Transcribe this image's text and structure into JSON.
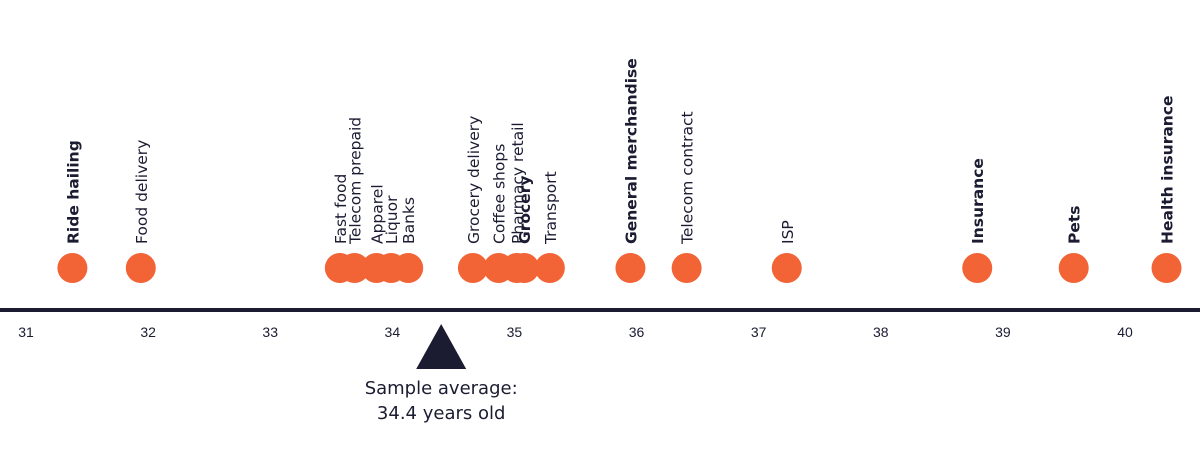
{
  "chart_data": {
    "type": "scatter",
    "xlim": [
      30.9,
      40.6
    ],
    "ticks": [
      31,
      32,
      33,
      34,
      35,
      36,
      37,
      38,
      39,
      40
    ],
    "points": [
      {
        "label": "Ride hailing",
        "x": 31.38,
        "bold": true
      },
      {
        "label": "Food delivery",
        "x": 31.94,
        "bold": false
      },
      {
        "label": "Fast food",
        "x": 33.57,
        "bold": false
      },
      {
        "label": "Telecom prepaid",
        "x": 33.69,
        "bold": false
      },
      {
        "label": "Apparel",
        "x": 33.87,
        "bold": false
      },
      {
        "label": "Liquor",
        "x": 33.99,
        "bold": false
      },
      {
        "label": "Banks",
        "x": 34.13,
        "bold": false
      },
      {
        "label": "Grocery delivery",
        "x": 34.66,
        "bold": false
      },
      {
        "label": "Coffee shops",
        "x": 34.87,
        "bold": false
      },
      {
        "label": "Pharmacy retail",
        "x": 35.02,
        "bold": false
      },
      {
        "label": "Grocery",
        "x": 35.08,
        "bold": true
      },
      {
        "label": "Transport",
        "x": 35.29,
        "bold": false
      },
      {
        "label": "General merchandise",
        "x": 35.95,
        "bold": true
      },
      {
        "label": "Telecom contract",
        "x": 36.41,
        "bold": false
      },
      {
        "label": "ISP",
        "x": 37.23,
        "bold": false
      },
      {
        "label": "Insurance",
        "x": 38.79,
        "bold": true
      },
      {
        "label": "Pets",
        "x": 39.58,
        "bold": true
      },
      {
        "label": "Health insurance",
        "x": 40.34,
        "bold": true
      }
    ],
    "average": {
      "value": 34.4,
      "label_line1": "Sample average:",
      "label_line2": "34.4 years old"
    },
    "colors": {
      "point": "#f26335",
      "axis": "#1b1b32",
      "marker": "#1b1b32",
      "text": "#1b1b32"
    }
  }
}
